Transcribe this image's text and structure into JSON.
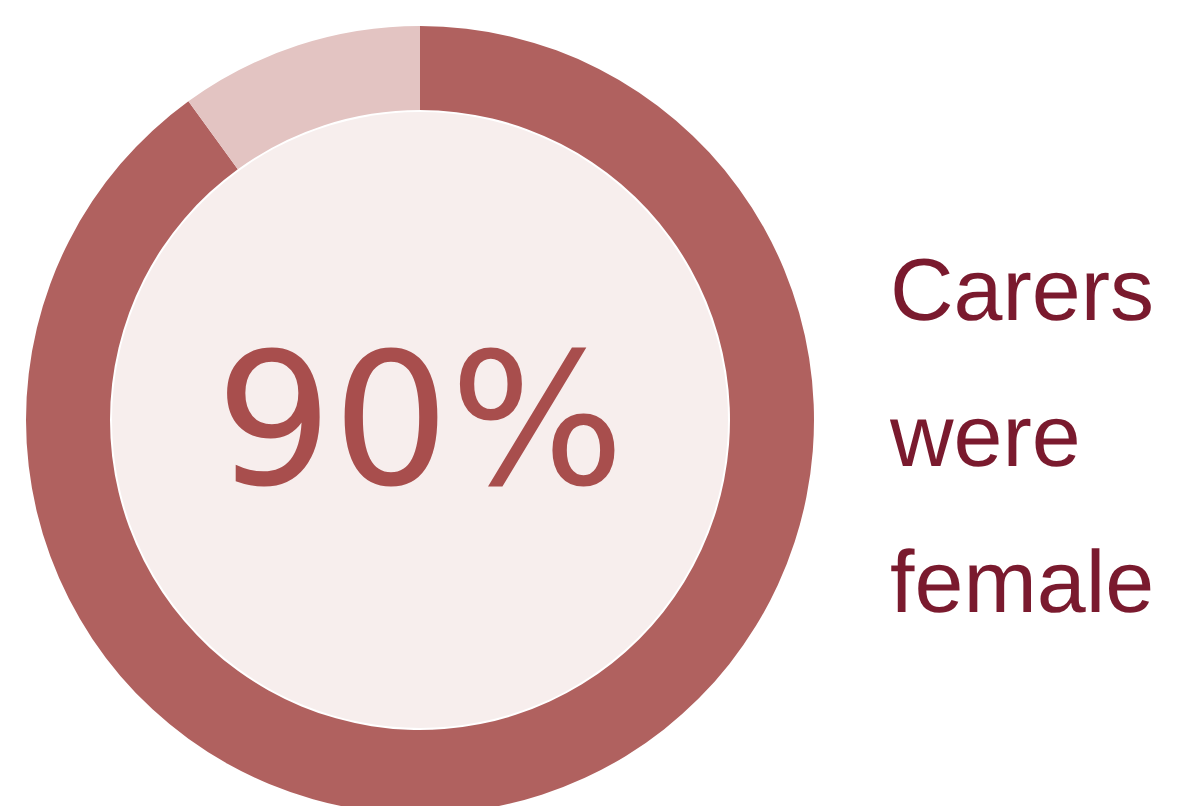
{
  "chart_data": {
    "type": "donut",
    "title": "Carers were female",
    "categories": [
      null,
      null
    ],
    "values": [
      90,
      10
    ],
    "colors": [
      "#b0615f",
      "#e3c4c2"
    ],
    "value_labels": [
      "90%",
      null
    ]
  }
}
